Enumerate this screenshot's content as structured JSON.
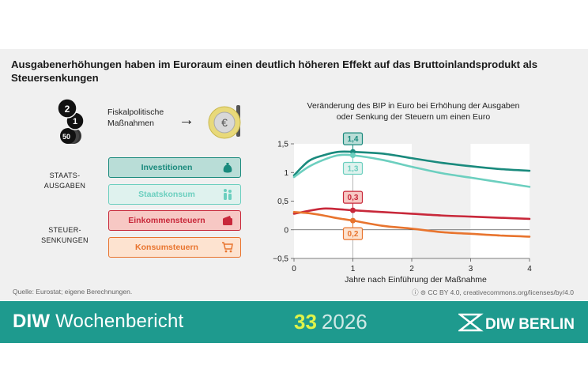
{
  "title": "Ausgabenerhöhungen haben im Euroraum einen deutlich höheren Effekt auf das Bruttoinlandsprodukt als Steuersenkungen",
  "left": {
    "coins": [
      "2",
      "1",
      "50"
    ],
    "fiscal_label": "Fiskalpolitische Maßnahmen",
    "arrow": "→",
    "euro_symbol": "€",
    "group1_label": "STAATS-\nAUSGABEN",
    "group2_label": "STEUER-\nSENKUNGEN",
    "boxes": [
      {
        "label": "Investitionen",
        "icon": "money-bag-icon"
      },
      {
        "label": "Staatskonsum",
        "icon": "people-icon"
      },
      {
        "label": "Einkommensteuern",
        "icon": "wallet-icon"
      },
      {
        "label": "Konsumsteuern",
        "icon": "shopping-cart-icon"
      }
    ]
  },
  "colors": {
    "investitionen": "#1a8a7d",
    "staatskonsum": "#6ccfbf",
    "einkommensteuern": "#c8283a",
    "konsumsteuern": "#e8742e",
    "footer": "#1e9a8e",
    "panel": "#f0f0f0"
  },
  "chart_data": {
    "type": "line",
    "title": "Veränderung des BIP in Euro bei Erhöhung der Ausgaben\noder Senkung der Steuern um einen Euro",
    "xlabel": "Jahre nach Einführung der Maßnahme",
    "ylabel": "",
    "xlim": [
      0,
      4
    ],
    "ylim": [
      -0.5,
      1.5
    ],
    "x_ticks": [
      "0",
      "1",
      "2",
      "3",
      "4"
    ],
    "y_ticks": [
      "1,5",
      "1",
      "0,5",
      "0",
      "−0,5"
    ],
    "grid": false,
    "shaded_x_ranges": [
      [
        0,
        2
      ],
      [
        3,
        4
      ]
    ],
    "series": [
      {
        "name": "Investitionen",
        "color": "#1a8a7d",
        "x": [
          0,
          0.25,
          0.5,
          0.75,
          1,
          1.5,
          2,
          2.5,
          3,
          3.5,
          4
        ],
        "y": [
          0.95,
          1.2,
          1.3,
          1.36,
          1.36,
          1.33,
          1.25,
          1.17,
          1.11,
          1.06,
          1.03
        ]
      },
      {
        "name": "Staatskonsum",
        "color": "#6ccfbf",
        "x": [
          0,
          0.25,
          0.5,
          0.75,
          1,
          1.5,
          2,
          2.5,
          3,
          3.5,
          4
        ],
        "y": [
          0.92,
          1.1,
          1.22,
          1.3,
          1.3,
          1.22,
          1.1,
          0.99,
          0.91,
          0.83,
          0.75
        ]
      },
      {
        "name": "Einkommensteuern",
        "color": "#c8283a",
        "x": [
          0,
          0.25,
          0.5,
          0.75,
          1,
          1.5,
          2,
          2.5,
          3,
          3.5,
          4
        ],
        "y": [
          0.28,
          0.33,
          0.37,
          0.36,
          0.34,
          0.31,
          0.28,
          0.25,
          0.23,
          0.21,
          0.19
        ]
      },
      {
        "name": "Konsumsteuern",
        "color": "#e8742e",
        "x": [
          0,
          0.25,
          0.5,
          0.75,
          1,
          1.5,
          2,
          2.5,
          3,
          3.5,
          4
        ],
        "y": [
          0.31,
          0.29,
          0.25,
          0.2,
          0.16,
          0.07,
          0.02,
          -0.04,
          -0.07,
          -0.1,
          -0.12
        ]
      }
    ],
    "annotations": [
      {
        "text": "1,4",
        "series": "Investitionen",
        "x": 1,
        "y": 1.36,
        "position": "above"
      },
      {
        "text": "1,3",
        "series": "Staatskonsum",
        "x": 1,
        "y": 1.3,
        "position": "below"
      },
      {
        "text": "0,3",
        "series": "Einkommensteuern",
        "x": 1,
        "y": 0.34,
        "position": "above"
      },
      {
        "text": "0,2",
        "series": "Konsumsteuern",
        "x": 1,
        "y": 0.16,
        "position": "below"
      }
    ]
  },
  "source": "Quelle: Eurostat; eigene Berechnungen.",
  "license": "CC BY 4.0, creativecommons.org/licenses/by/4.0",
  "license_icons": "ⓘ ⊜",
  "footer": {
    "brand_bold": "DIW",
    "brand_rest": "Wochenbericht",
    "issue_number": "33",
    "issue_year": "2026",
    "logo_text": "DIW BERLIN"
  }
}
